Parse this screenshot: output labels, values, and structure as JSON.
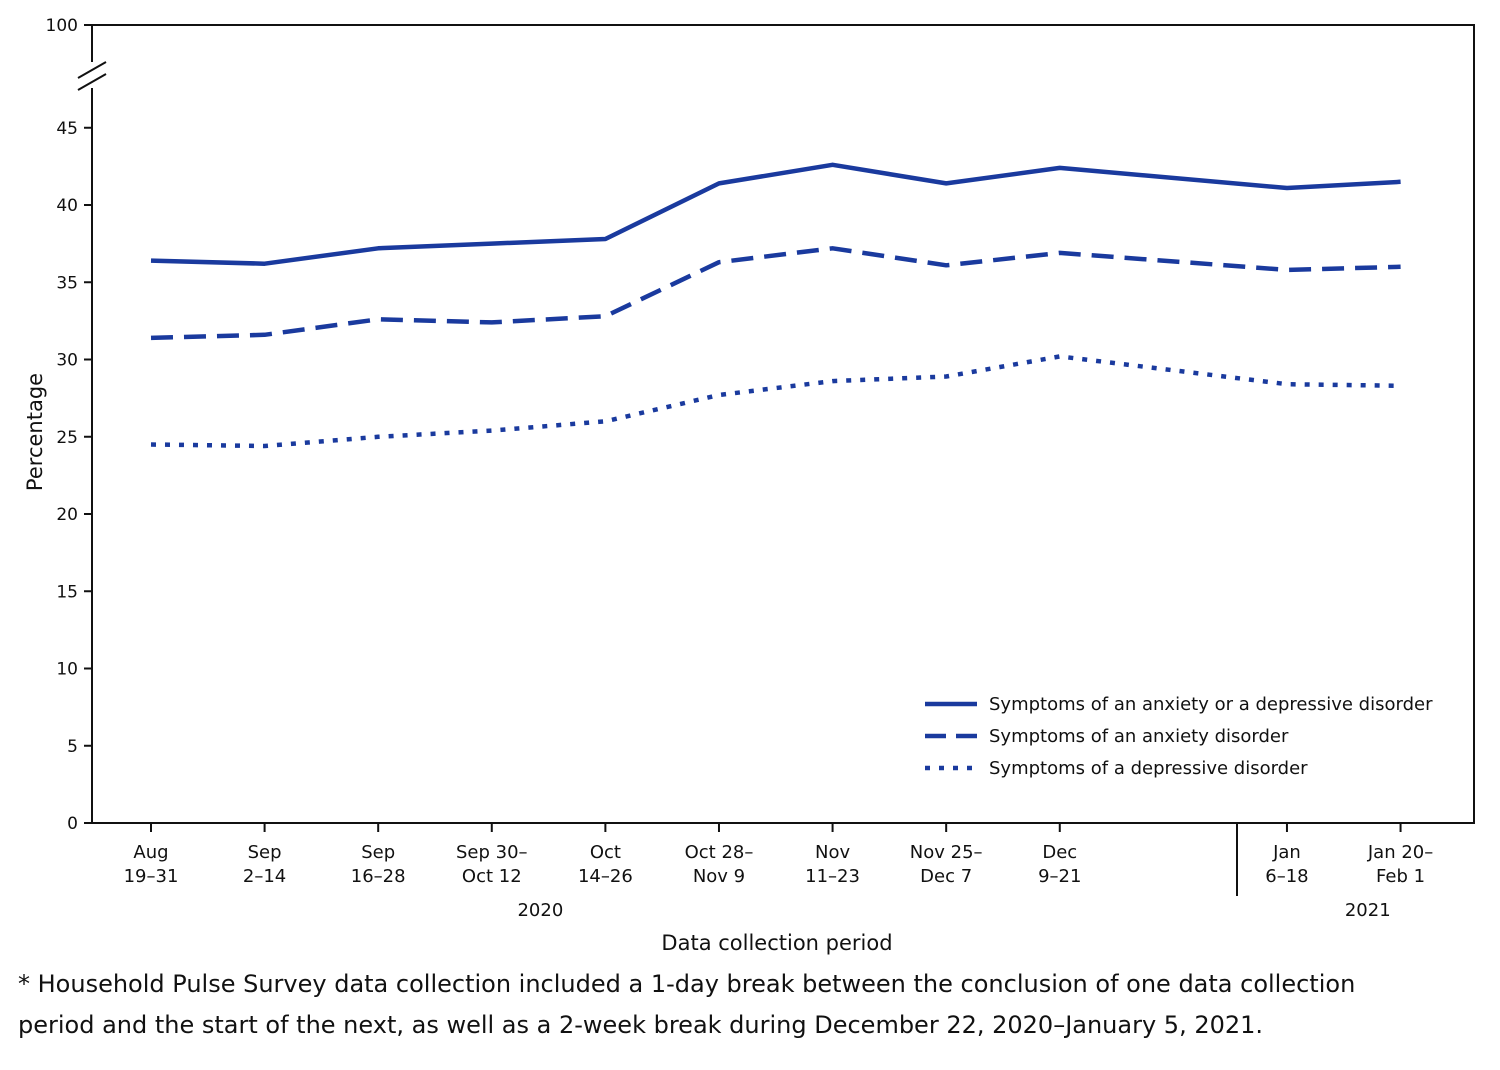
{
  "chart_data": {
    "type": "line",
    "ylabel": "Percentage",
    "xlabel": "Data collection period",
    "ylim": [
      0,
      100
    ],
    "y_axis_break": [
      47,
      100
    ],
    "y_ticks": [
      0,
      5,
      10,
      15,
      20,
      25,
      30,
      35,
      40,
      45,
      100
    ],
    "y_tick_labels": [
      "0",
      "5",
      "10",
      "15",
      "20",
      "25",
      "30",
      "35",
      "40",
      "45",
      "100"
    ],
    "categories": [
      [
        "Aug",
        "19–31"
      ],
      [
        "Sep",
        "2–14"
      ],
      [
        "Sep",
        "16–28"
      ],
      [
        "Sep 30–",
        "Oct 12"
      ],
      [
        "Oct",
        "14–26"
      ],
      [
        "Oct 28–",
        "Nov 9"
      ],
      [
        "Nov",
        "11–23"
      ],
      [
        "Nov 25–",
        "Dec 7"
      ],
      [
        "Dec",
        "9–21"
      ],
      [
        "Jan",
        "6–18"
      ],
      [
        "Jan 20–",
        "Feb 1"
      ]
    ],
    "x_dates": [
      "2020-08-19",
      "2020-09-02",
      "2020-09-16",
      "2020-09-30",
      "2020-10-14",
      "2020-10-28",
      "2020-11-11",
      "2020-11-25",
      "2020-12-09",
      "2021-01-06",
      "2021-01-20"
    ],
    "year_groups": [
      {
        "label": "2020",
        "from": 0,
        "to": 8
      },
      {
        "label": "2021",
        "from": 9,
        "to": 10
      }
    ],
    "series": [
      {
        "name": "Symptoms of an anxiety or a depressive disorder",
        "style": "solid",
        "values": [
          36.4,
          36.2,
          37.2,
          37.5,
          37.8,
          41.4,
          42.6,
          41.4,
          42.4,
          41.1,
          41.5
        ]
      },
      {
        "name": "Symptoms of an anxiety disorder",
        "style": "dashed",
        "values": [
          31.4,
          31.6,
          32.6,
          32.4,
          32.8,
          36.3,
          37.2,
          36.1,
          36.9,
          35.8,
          36.0
        ]
      },
      {
        "name": "Symptoms of a depressive disorder",
        "style": "dotted",
        "values": [
          24.5,
          24.4,
          25.0,
          25.4,
          26.0,
          27.7,
          28.6,
          28.9,
          30.2,
          28.4,
          28.3
        ]
      }
    ],
    "legend_position": "bottom-right",
    "grid": false,
    "colors": {
      "line": "#1a3a9e",
      "axis": "#111111"
    }
  },
  "footnote": {
    "line1": "* Household Pulse Survey data collection included a 1-day break between the conclusion of one data collection",
    "line2": "period and the start of the next, as well as a 2-week break during December 22, 2020–January 5, 2021."
  }
}
